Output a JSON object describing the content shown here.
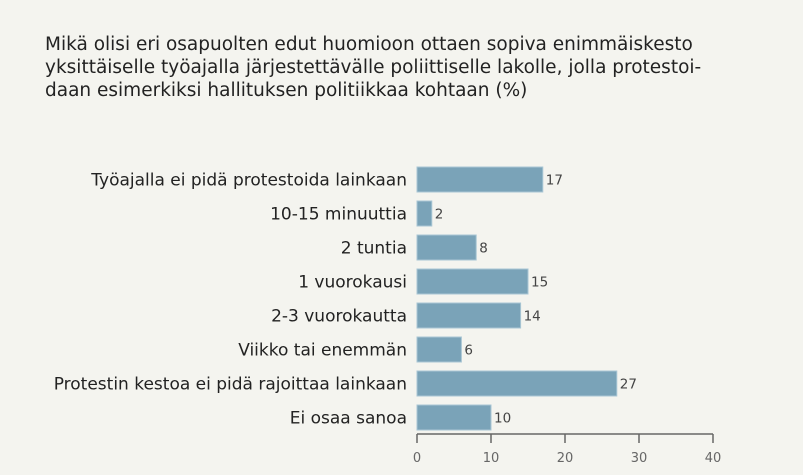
{
  "chart_data": {
    "type": "bar",
    "orientation": "horizontal",
    "title_lines": [
      "Mikä olisi eri osapuolten edut huomioon ottaen sopiva enimmäiskesto",
      "yksittäiselle työajalla järjestettävälle poliittiselle lakolle, jolla protestoi-",
      "daan esimerkiksi hallituksen politiikkaa kohtaan (%)"
    ],
    "categories": [
      "Työajalla ei pidä protestoida lainkaan",
      "10-15 minuuttia",
      "2 tuntia",
      "1 vuorokausi",
      "2-3 vuorokautta",
      "Viikko tai enemmän",
      "Protestin kestoa ei pidä rajoittaa lainkaan",
      "Ei osaa sanoa"
    ],
    "values": [
      17,
      2,
      8,
      15,
      14,
      6,
      27,
      10
    ],
    "xlim": [
      0,
      40
    ],
    "xticks": [
      0,
      10,
      20,
      30,
      40
    ],
    "xlabel": "",
    "ylabel": "",
    "grid": false,
    "bar_color": "#7aa3b8"
  }
}
